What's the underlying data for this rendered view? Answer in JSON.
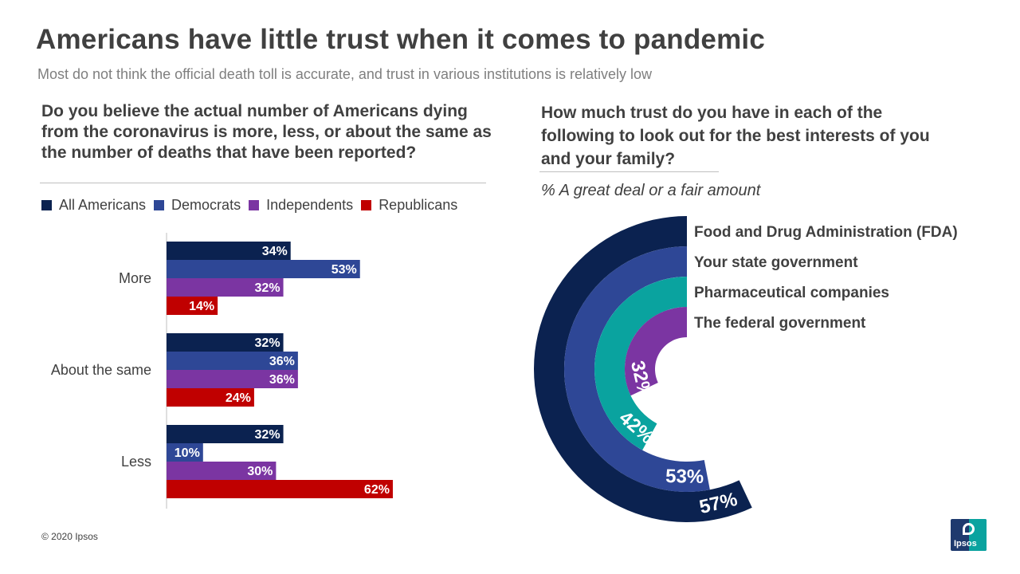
{
  "header": {
    "title": "Americans have little trust when it comes to pandemic",
    "subtitle": "Most do not think the official death toll is accurate, and trust in various institutions is relatively low"
  },
  "left": {
    "question": "Do you believe the actual number of Americans dying from the coronavirus is more, less, or about the same as the number of deaths that have been reported?"
  },
  "right": {
    "question": "How much trust do you have in each of the following to look out for the best interests of you and your family?",
    "note": "% A great deal or a fair amount"
  },
  "footer": {
    "copyright": "© 2020 Ipsos",
    "logo_text": "Ipsos"
  },
  "colors": {
    "all_americans": "#0b2250",
    "democrats": "#2e4796",
    "independents": "#7b35a2",
    "republicans": "#c00000",
    "fda": "#0b2250",
    "state": "#2e4796",
    "pharma": "#0aa39f",
    "federal": "#7b35a2"
  },
  "chart_data": [
    {
      "type": "bar",
      "orientation": "horizontal",
      "categories": [
        "More",
        "About the same",
        "Less"
      ],
      "series": [
        {
          "name": "All Americans",
          "values": [
            34,
            32,
            32
          ],
          "labels": [
            "34%",
            "32%",
            "32%"
          ]
        },
        {
          "name": "Democrats",
          "values": [
            53,
            36,
            10
          ],
          "labels": [
            "53%",
            "36%",
            "10%"
          ]
        },
        {
          "name": "Independents",
          "values": [
            32,
            36,
            30
          ],
          "labels": [
            "32%",
            "36%",
            "30%"
          ]
        },
        {
          "name": "Republicans",
          "values": [
            14,
            24,
            62
          ],
          "labels": [
            "14%",
            "24%",
            "62%"
          ]
        }
      ],
      "xlim": [
        0,
        100
      ],
      "grid": false,
      "legend": "top"
    },
    {
      "type": "radial-bar",
      "categories": [
        "Food and Drug Administration (FDA)",
        "Your state government",
        "Pharmaceutical companies",
        "The federal government"
      ],
      "values": [
        57,
        53,
        42,
        32
      ],
      "labels": [
        "57%",
        "53%",
        "42%",
        "32%"
      ],
      "max": 100
    }
  ]
}
